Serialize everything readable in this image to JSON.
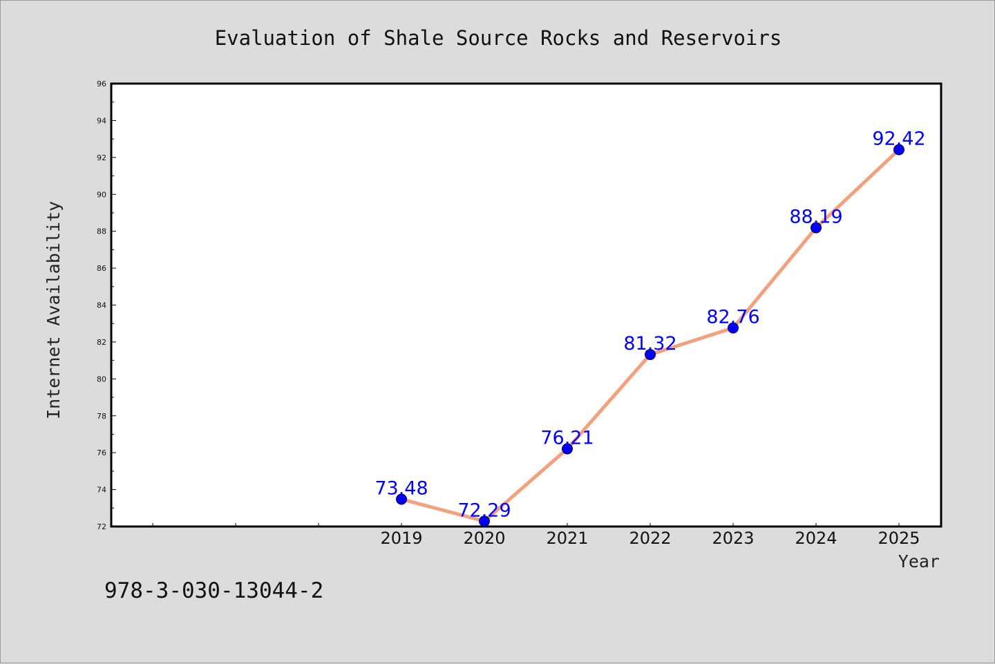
{
  "chart_data": {
    "type": "line",
    "title": "Evaluation of Shale Source Rocks and Reservoirs",
    "xlabel": "Year",
    "ylabel": "Internet Availability",
    "categories": [
      "2019",
      "2020",
      "2021",
      "2022",
      "2023",
      "2024",
      "2025"
    ],
    "series": [
      {
        "values": [
          73.48,
          72.29,
          76.21,
          81.32,
          82.76,
          88.19,
          92.42
        ],
        "line_color": "#f4a07c",
        "marker_color": "#0000ff"
      }
    ],
    "data_labels": [
      "73.48",
      "72.29",
      "76.21",
      "81.32",
      "82.76",
      "88.19",
      "92.42"
    ],
    "ylim": [
      72,
      96
    ],
    "yticks": [
      "72",
      "74",
      "76",
      "78",
      "80",
      "82",
      "84",
      "86",
      "88",
      "90",
      "92",
      "94",
      "96"
    ],
    "grid": false,
    "legend": "none"
  },
  "footnote": "978-3-030-13044-2",
  "colors": {
    "background": "#dcdcdc",
    "plot_background": "#ffffff",
    "data_label": "#0000ff"
  }
}
